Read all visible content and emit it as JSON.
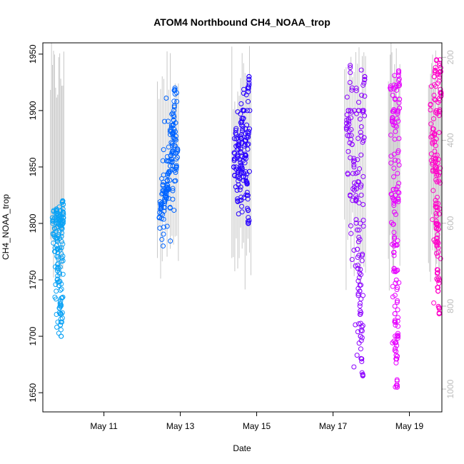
{
  "chart_data": {
    "type": "scatter",
    "title": "ATOM4 Northbound CH4_NOAA_trop",
    "xlabel": "Date",
    "ylabel": "CH4_NOAA_trop",
    "x_unit": "days since May 10",
    "xlim": [
      9.4,
      19.85
    ],
    "ylim": [
      1633,
      1960
    ],
    "x_ticks": [
      {
        "label": "May 11",
        "value": 11
      },
      {
        "label": "May 13",
        "value": 13
      },
      {
        "label": "May 15",
        "value": 15
      },
      {
        "label": "May 17",
        "value": 17
      },
      {
        "label": "May 19",
        "value": 19
      }
    ],
    "y_ticks": [
      1650,
      1700,
      1750,
      1800,
      1850,
      1900,
      1950
    ],
    "secondary_axis": {
      "color": "#bdbdbd",
      "reversed": true,
      "ylim": [
        1055,
        165
      ],
      "ticks": [
        200,
        400,
        600,
        800,
        1000
      ]
    },
    "legend": "none",
    "grid": false,
    "marker": "open-circle",
    "series": [
      {
        "color": "#0aa2f5",
        "x_range": [
          9.6,
          9.95
        ],
        "points": [
          [
            9.65,
            1805
          ],
          [
            9.7,
            1790
          ],
          [
            9.72,
            1775
          ],
          [
            9.75,
            1812
          ],
          [
            9.78,
            1760
          ],
          [
            9.8,
            1800
          ],
          [
            9.82,
            1745
          ],
          [
            9.84,
            1725
          ],
          [
            9.86,
            1710
          ],
          [
            9.88,
            1700
          ],
          [
            9.9,
            1795
          ],
          [
            9.92,
            1820
          ],
          [
            9.93,
            1810
          ],
          [
            9.94,
            1805
          ]
        ]
      },
      {
        "color": "#0064ff",
        "x_range": [
          12.4,
          12.95
        ],
        "points": [
          [
            12.45,
            1805
          ],
          [
            12.5,
            1815
          ],
          [
            12.55,
            1780
          ],
          [
            12.6,
            1820
          ],
          [
            12.65,
            1830
          ],
          [
            12.7,
            1845
          ],
          [
            12.75,
            1860
          ],
          [
            12.8,
            1880
          ],
          [
            12.83,
            1900
          ],
          [
            12.86,
            1920
          ],
          [
            12.9,
            1850
          ],
          [
            12.93,
            1865
          ]
        ]
      },
      {
        "color": "#2800ff",
        "x_range": [
          14.35,
          14.85
        ],
        "points": [
          [
            14.4,
            1850
          ],
          [
            14.45,
            1880
          ],
          [
            14.5,
            1820
          ],
          [
            14.55,
            1840
          ],
          [
            14.6,
            1875
          ],
          [
            14.65,
            1900
          ],
          [
            14.7,
            1860
          ],
          [
            14.75,
            1835
          ],
          [
            14.78,
            1800
          ],
          [
            14.8,
            1930
          ],
          [
            14.82,
            1900
          ]
        ]
      },
      {
        "color": "#8c00ff",
        "x_range": [
          17.3,
          17.85
        ],
        "points": [
          [
            17.35,
            1885
          ],
          [
            17.4,
            1900
          ],
          [
            17.45,
            1940
          ],
          [
            17.5,
            1870
          ],
          [
            17.55,
            1850
          ],
          [
            17.6,
            1820
          ],
          [
            17.65,
            1760
          ],
          [
            17.7,
            1740
          ],
          [
            17.72,
            1700
          ],
          [
            17.75,
            1680
          ],
          [
            17.78,
            1665
          ],
          [
            17.8,
            1900
          ],
          [
            17.83,
            1930
          ]
        ]
      },
      {
        "color": "#e600ff",
        "x_range": [
          18.45,
          18.75
        ],
        "points": [
          [
            18.5,
            1920
          ],
          [
            18.55,
            1890
          ],
          [
            18.58,
            1830
          ],
          [
            18.6,
            1760
          ],
          [
            18.62,
            1720
          ],
          [
            18.65,
            1680
          ],
          [
            18.68,
            1655
          ],
          [
            18.7,
            1700
          ],
          [
            18.72,
            1935
          ],
          [
            18.74,
            1910
          ]
        ]
      },
      {
        "color": "#ff00c8",
        "x_range": [
          19.5,
          19.85
        ],
        "points": [
          [
            19.55,
            1905
          ],
          [
            19.6,
            1880
          ],
          [
            19.65,
            1930
          ],
          [
            19.68,
            1850
          ],
          [
            19.7,
            1800
          ],
          [
            19.72,
            1780
          ],
          [
            19.75,
            1740
          ],
          [
            19.78,
            1720
          ],
          [
            19.8,
            1945
          ],
          [
            19.83,
            1915
          ]
        ]
      }
    ]
  }
}
